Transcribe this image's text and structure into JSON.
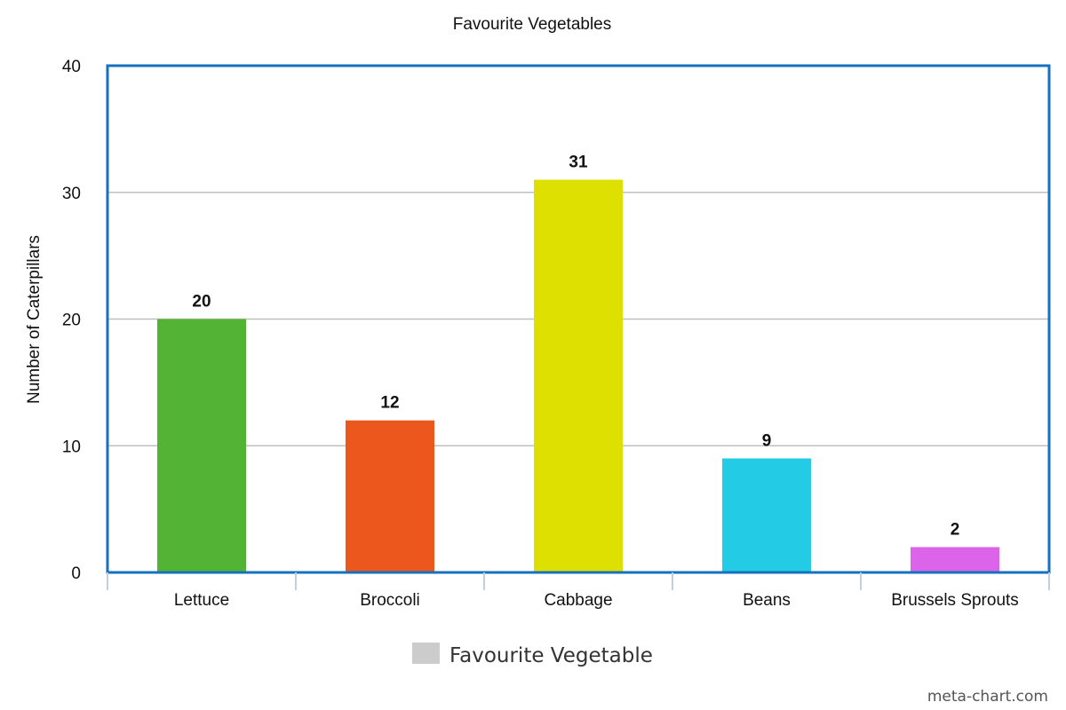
{
  "chart_data": {
    "type": "bar",
    "title": "Favourite Vegetables",
    "xlabel": "",
    "ylabel": "Number of Caterpillars",
    "categories": [
      "Lettuce",
      "Broccoli",
      "Cabbage",
      "Beans",
      "Brussels Sprouts"
    ],
    "values": [
      20,
      12,
      31,
      9,
      2
    ],
    "value_labels": [
      "20",
      "12",
      "31",
      "9",
      "2"
    ],
    "bar_colors": [
      "#52b334",
      "#eb571c",
      "#dde000",
      "#24cbe5",
      "#dc64e8"
    ],
    "ylim": [
      0,
      40
    ],
    "y_ticks": [
      0,
      10,
      20,
      30,
      40
    ],
    "y_tick_labels": [
      "0",
      "10",
      "20",
      "30",
      "40"
    ],
    "grid": true,
    "legend": {
      "position": "bottom-center",
      "entries": [
        {
          "label": "Favourite Vegetable",
          "color": "#cccccc"
        }
      ]
    }
  },
  "colors": {
    "plot_border": "#1570bd",
    "grid": "#c0c0c0",
    "axis_tick": "#c0d0e0"
  },
  "watermark": "meta-chart.com"
}
